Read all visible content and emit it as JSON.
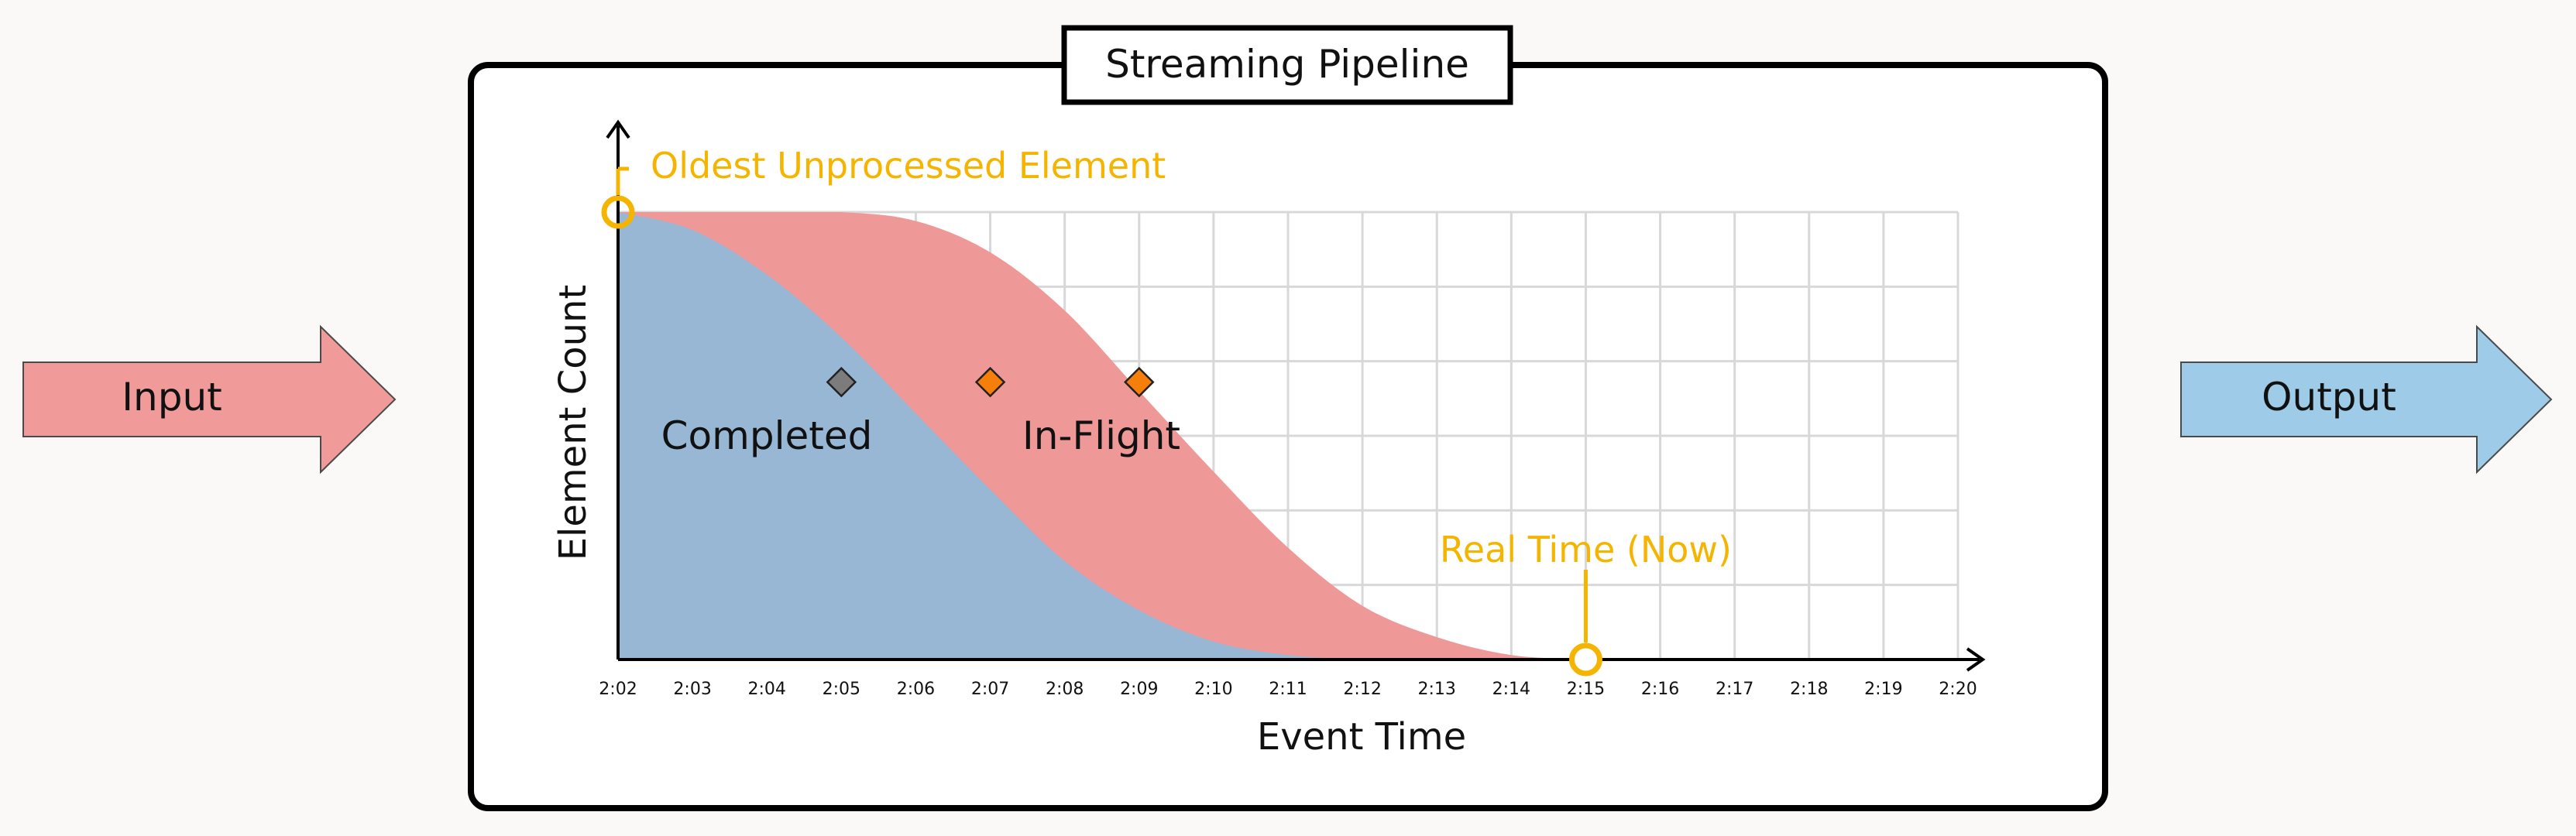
{
  "input_label": "Input",
  "output_label": "Output",
  "pipeline_title": "Streaming Pipeline",
  "colors": {
    "input_fill": "#f19a9a",
    "output_fill": "#9dcbe8",
    "completed_fill": "#97b7d5",
    "inflight_fill": "#ef9898",
    "accent": "#f5b400",
    "marker_completed": "#7c7c7c",
    "marker_inflight": "#f57f0a",
    "grid": "#d8d8d8"
  },
  "chart_data": {
    "type": "area",
    "xlabel": "Event Time",
    "ylabel": "Element Count",
    "ticks": [
      "2:02",
      "2:03",
      "2:04",
      "2:05",
      "2:06",
      "2:07",
      "2:08",
      "2:09",
      "2:10",
      "2:11",
      "2:12",
      "2:13",
      "2:14",
      "2:15",
      "2:16",
      "2:17",
      "2:18",
      "2:19",
      "2:20"
    ],
    "xlim": [
      "2:02",
      "2:20"
    ],
    "grid": true,
    "series": [
      {
        "name": "Completed",
        "x": [
          "2:02",
          "2:03",
          "2:04",
          "2:05",
          "2:06",
          "2:07",
          "2:08",
          "2:09",
          "2:10",
          "2:11",
          "2:12"
        ],
        "values": [
          1.0,
          0.96,
          0.86,
          0.72,
          0.55,
          0.38,
          0.22,
          0.11,
          0.04,
          0.01,
          0.0
        ]
      },
      {
        "name": "In-Flight",
        "x": [
          "2:02",
          "2:03",
          "2:04",
          "2:05",
          "2:06",
          "2:07",
          "2:08",
          "2:09",
          "2:10",
          "2:11",
          "2:12",
          "2:13",
          "2:14",
          "2:15"
        ],
        "values": [
          1.0,
          1.0,
          1.0,
          1.0,
          0.98,
          0.91,
          0.78,
          0.6,
          0.42,
          0.25,
          0.12,
          0.05,
          0.01,
          0.0
        ]
      }
    ],
    "markers": [
      {
        "series": "Completed",
        "x": "2:05",
        "y": 0.62
      },
      {
        "series": "In-Flight",
        "x": "2:07",
        "y": 0.62
      },
      {
        "series": "In-Flight",
        "x": "2:09",
        "y": 0.62
      }
    ],
    "annotations": [
      {
        "text": "Oldest Unprocessed Element",
        "x": "2:02",
        "y": 1.0
      },
      {
        "text": "Real Time (Now)",
        "x": "2:15",
        "y": 0.0
      }
    ]
  }
}
